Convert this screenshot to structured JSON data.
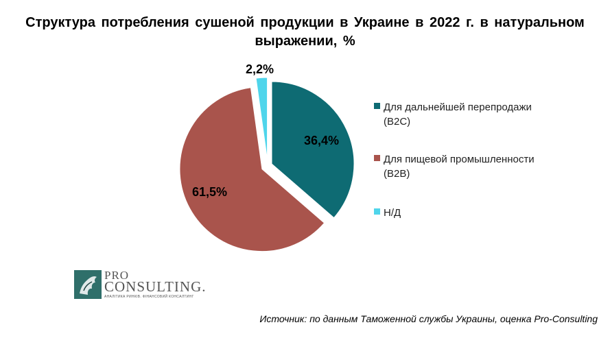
{
  "chart_data": {
    "type": "pie",
    "title": "Структура  потребления  сушеной  продукции  в  Украине  в  2022  г.  в  натуральном  выражении,  %",
    "slices": [
      {
        "label": "Для дальнейшей перепродажи (B2C)",
        "value": 36.4,
        "display": "36,4%",
        "color": "#0e6b73",
        "exploded": false
      },
      {
        "label": "Для пищевой промышленности (B2B)",
        "value": 61.5,
        "display": "61,5%",
        "color": "#a9544c",
        "exploded": true
      },
      {
        "label": "Н/Д",
        "value": 2.2,
        "display": "2,2%",
        "color": "#4fd5eb",
        "exploded": false
      }
    ],
    "legend_position": "right"
  },
  "logo": {
    "line1": "PRO",
    "line2": "CONSULTING.",
    "tagline": "АНАЛІТИКА РИНКІВ. ФІНАНСОВИЙ КОНСАЛТИНГ",
    "mark_color": "#2f6f6a"
  },
  "source": "Источник: по данным Таможенной службы Украины, оценка Pro-Consulting"
}
